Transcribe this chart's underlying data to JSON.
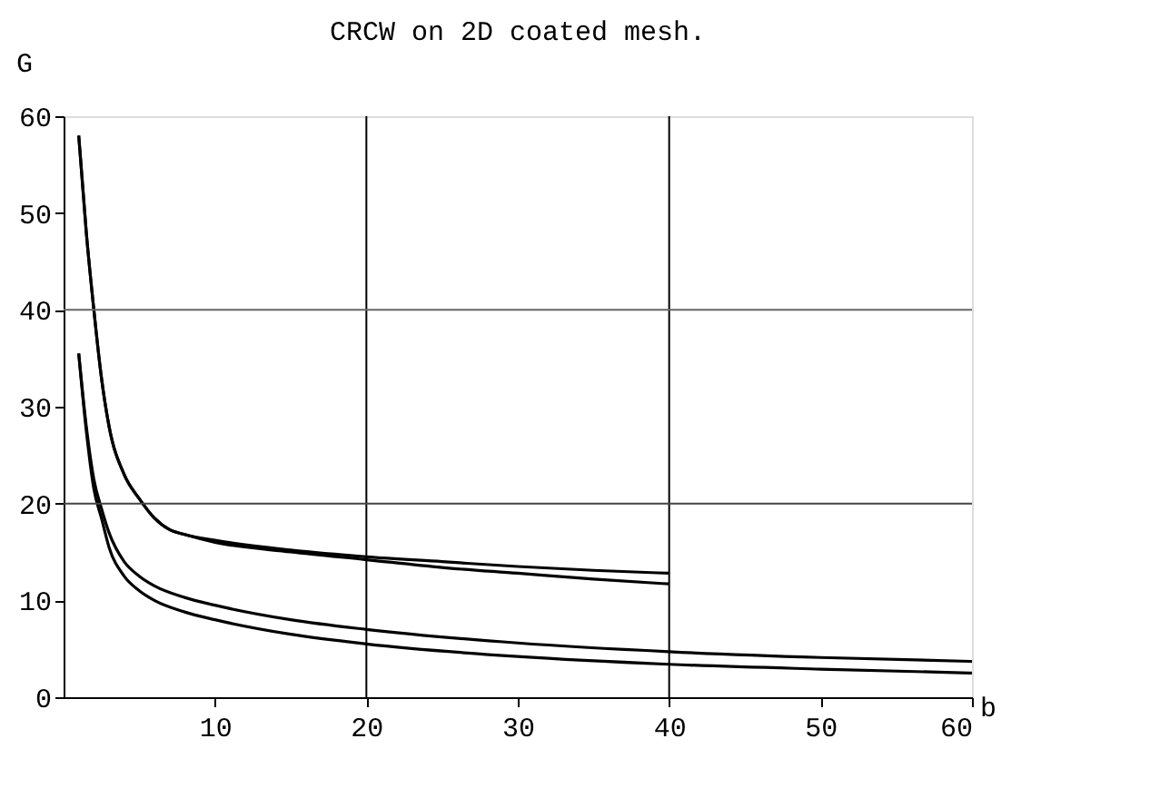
{
  "chart_data": {
    "type": "line",
    "title": "CRCW on 2D coated mesh.",
    "xlabel": "b",
    "ylabel": "G",
    "xlim": [
      0,
      60
    ],
    "ylim": [
      0,
      60
    ],
    "xticks": [
      10,
      20,
      30,
      40,
      50,
      60
    ],
    "yticks": [
      0,
      10,
      20,
      30,
      40,
      50,
      60
    ],
    "grid": false,
    "legend": false,
    "marker": "none",
    "line_style": "solid",
    "ref_lines": [
      {
        "axis": "x",
        "value": 20,
        "color": "#000000"
      },
      {
        "axis": "x",
        "value": 40,
        "color": "#000000"
      },
      {
        "axis": "y",
        "value": 20,
        "color": "#444444"
      },
      {
        "axis": "y",
        "value": 40,
        "color": "#666666"
      }
    ],
    "series": [
      {
        "color": "#000000",
        "x": [
          1,
          1.5,
          2,
          2.5,
          3,
          4,
          5,
          6,
          7,
          8,
          10,
          15,
          20,
          25,
          30,
          35,
          40
        ],
        "values": [
          58,
          48,
          40,
          33,
          28,
          23,
          20.5,
          18.5,
          17.3,
          16.8,
          16.2,
          15.2,
          14.5,
          14,
          13.5,
          13.1,
          12.8
        ]
      },
      {
        "color": "#000000",
        "x": [
          1,
          1.5,
          2,
          2.5,
          3,
          4,
          5,
          6,
          7,
          8,
          10,
          15,
          20,
          25,
          30,
          35,
          40
        ],
        "values": [
          58,
          48,
          40,
          33,
          28,
          23,
          20.5,
          18.5,
          17.3,
          16.8,
          16.0,
          15.0,
          14.2,
          13.4,
          12.8,
          12.2,
          11.7
        ]
      },
      {
        "color": "#000000",
        "x": [
          1,
          1.5,
          2,
          2.5,
          3,
          4,
          5,
          6,
          8,
          10,
          15,
          20,
          30,
          40,
          50,
          60
        ],
        "values": [
          35.5,
          28,
          22.5,
          19.5,
          17,
          14,
          12.5,
          11.5,
          10.3,
          9.5,
          8,
          7,
          5.6,
          4.7,
          4.1,
          3.7
        ]
      },
      {
        "color": "#000000",
        "x": [
          1,
          1.5,
          2,
          2.5,
          3,
          4,
          5,
          6,
          8,
          10,
          15,
          20,
          30,
          40,
          50,
          60
        ],
        "values": [
          35.5,
          27.5,
          21.5,
          18.5,
          15.5,
          12.5,
          11,
          10,
          8.8,
          8,
          6.5,
          5.5,
          4.2,
          3.4,
          2.9,
          2.5
        ]
      }
    ]
  }
}
